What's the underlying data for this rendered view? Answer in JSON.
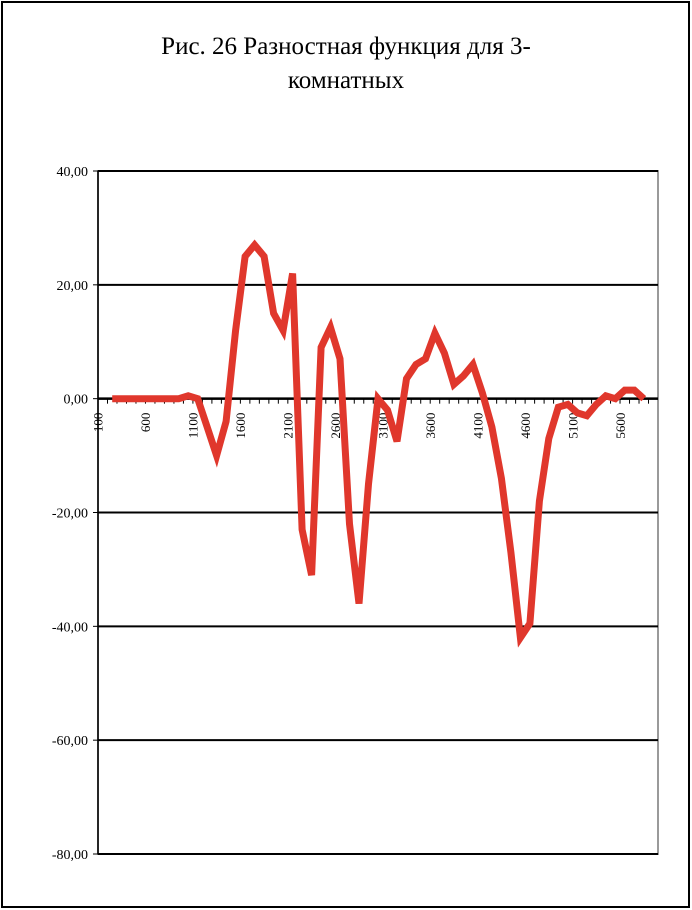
{
  "chart_data": {
    "type": "line",
    "title": [
      "Рис. 26 Разностная функция для 3-",
      "комнатных"
    ],
    "categories": [
      "100",
      null,
      null,
      null,
      null,
      "600",
      null,
      null,
      null,
      null,
      "1100",
      null,
      null,
      null,
      null,
      "1600",
      null,
      null,
      null,
      null,
      "2100",
      null,
      null,
      null,
      null,
      "2600",
      null,
      null,
      null,
      null,
      "3100",
      null,
      null,
      null,
      null,
      "3600",
      null,
      null,
      null,
      null,
      "4100",
      null,
      null,
      null,
      null,
      "4600",
      null,
      null,
      null,
      null,
      "5100",
      null,
      null,
      null,
      null,
      "5600",
      null,
      null,
      null
    ],
    "series": [
      {
        "color": "#e0372c",
        "values": [
          null,
          0,
          0,
          0,
          0,
          0,
          0,
          0,
          0,
          0.5,
          0,
          -5,
          -10,
          -4,
          12,
          25,
          27,
          25,
          15,
          12,
          22,
          -23,
          -31,
          9,
          12.5,
          7,
          -22,
          -36,
          -15,
          0,
          -2,
          -7.5,
          3.5,
          6,
          7,
          11.5,
          8,
          2.5,
          4,
          6,
          1,
          -5,
          -14,
          -27,
          -42,
          -39.5,
          -18,
          -7,
          -1.5,
          -1,
          -2.5,
          -3,
          -1,
          0.5,
          0,
          1.5,
          1.5,
          0,
          null
        ]
      }
    ],
    "ylim": [
      -80,
      40
    ],
    "yticks": [
      {
        "value": -80,
        "label": "-80,00"
      },
      {
        "value": -60,
        "label": "-60,00"
      },
      {
        "value": -40,
        "label": "-40,00"
      },
      {
        "value": -20,
        "label": "-20,00"
      },
      {
        "value": 0,
        "label": "0,00"
      },
      {
        "value": 20,
        "label": "20,00"
      },
      {
        "value": 40,
        "label": "40,00"
      }
    ],
    "grid": true
  }
}
